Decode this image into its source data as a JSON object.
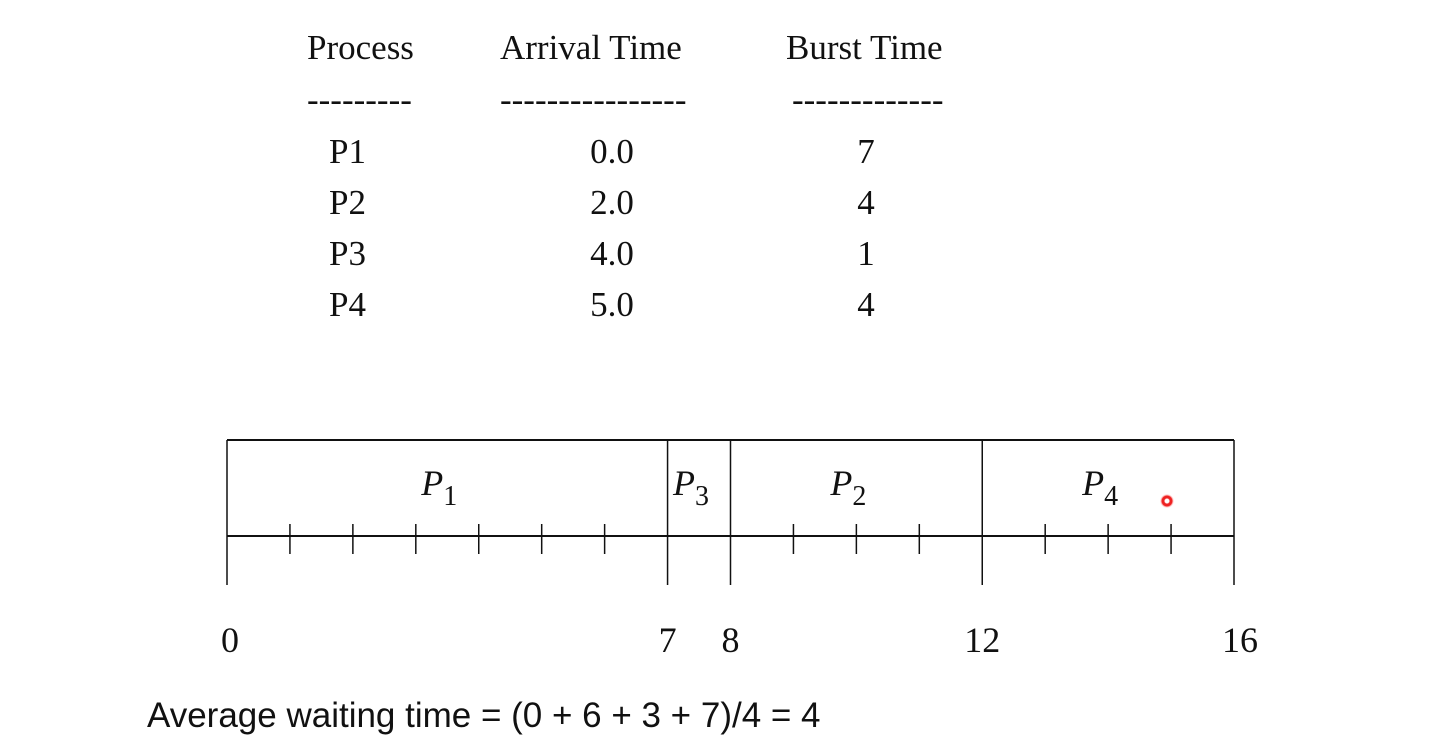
{
  "table": {
    "headers": [
      "Process",
      "Arrival Time",
      "Burst Time"
    ],
    "dashes": [
      "---------",
      "----------------",
      "-------------"
    ],
    "rows": [
      {
        "process": "P1",
        "arrival": "0.0",
        "burst": "7"
      },
      {
        "process": "P2",
        "arrival": "2.0",
        "burst": "4"
      },
      {
        "process": "P3",
        "arrival": "4.0",
        "burst": "1"
      },
      {
        "process": "P4",
        "arrival": "5.0",
        "burst": "4"
      }
    ]
  },
  "gantt": {
    "segments": [
      {
        "name": "P",
        "sub": "1",
        "start": 0,
        "end": 7
      },
      {
        "name": "P",
        "sub": "3",
        "start": 7,
        "end": 8
      },
      {
        "name": "P",
        "sub": "2",
        "start": 8,
        "end": 12
      },
      {
        "name": "P",
        "sub": "4",
        "start": 12,
        "end": 16
      }
    ],
    "tick_labels": [
      "0",
      "7",
      "8",
      "12",
      "16"
    ],
    "tick_values": [
      0,
      7,
      8,
      12,
      16
    ],
    "range": [
      0,
      16
    ]
  },
  "footer": "Average waiting time = (0 + 6 + 3 + 7)/4 = 4",
  "colors": {
    "line": "#111111",
    "pointer": "#e22222"
  }
}
